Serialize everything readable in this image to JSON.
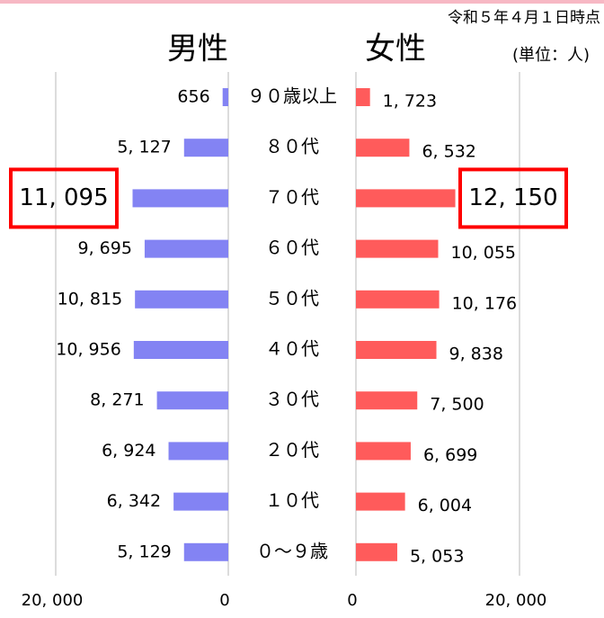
{
  "chart_data": {
    "type": "pyramid",
    "note_date": "令和５年４月１日時点",
    "unit": "(単位：人)",
    "categories": [
      "９０歳以上",
      "８０代",
      "７０代",
      "６０代",
      "５０代",
      "４０代",
      "３０代",
      "２０代",
      "１０代",
      "０～９歳"
    ],
    "series": [
      {
        "name": "男性",
        "color": "#8383f3",
        "values": [
          656,
          5127,
          11095,
          9695,
          10815,
          10956,
          8271,
          6924,
          6342,
          5129
        ],
        "value_labels": [
          "656",
          "5, 127",
          "11, 095",
          "9, 695",
          "10, 815",
          "10, 956",
          "8, 271",
          "6, 924",
          "6, 342",
          "5, 129"
        ]
      },
      {
        "name": "女性",
        "color": "#ff5b5b",
        "values": [
          1723,
          6532,
          12150,
          10055,
          10176,
          9838,
          7500,
          6699,
          6004,
          5053
        ],
        "value_labels": [
          "1, 723",
          "6, 532",
          "12, 150",
          "10, 055",
          "10, 176",
          "9, 838",
          "7, 500",
          "6, 699",
          "6, 004",
          "5, 053"
        ]
      }
    ],
    "xlim": [
      0,
      20000
    ],
    "xticks": [
      0,
      {
        "value": 20000,
        "label": "20, 000"
      }
    ],
    "grid": true,
    "highlight_index": 2
  }
}
